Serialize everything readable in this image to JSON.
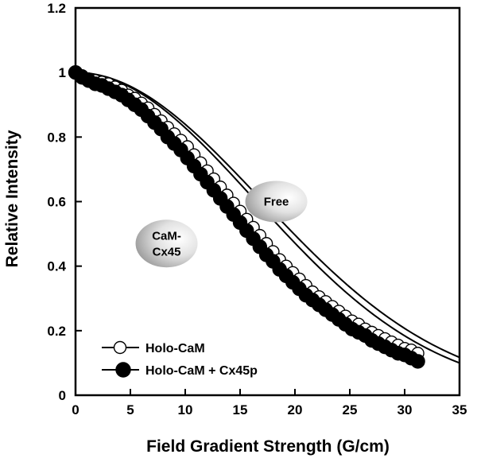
{
  "chart_data": {
    "type": "scatter",
    "xlabel": "Field Gradient Strength (G/cm)",
    "ylabel": "Relative Intensity",
    "xlim": [
      0,
      35
    ],
    "ylim": [
      0,
      1.2
    ],
    "xticks": [
      "0",
      "5",
      "10",
      "15",
      "20",
      "25",
      "30",
      "35"
    ],
    "yticks": [
      "0",
      "0.2",
      "0.4",
      "0.6",
      "0.8",
      "1",
      "1.2"
    ],
    "grid": false,
    "legend_position": "bottom-left",
    "annotations": [
      {
        "text": "Free",
        "x": 18.3,
        "y": 0.6
      },
      {
        "text": "CaM-\nCx45",
        "x": 8.3,
        "y": 0.47
      }
    ],
    "series": [
      {
        "name": "Holo-CaM",
        "marker": "open-circle",
        "fit": {
          "a": 0.00175,
          "from": 0,
          "to": 35
        },
        "points": [
          [
            0.0,
            1.0
          ],
          [
            0.6,
            0.99
          ],
          [
            1.2,
            0.98
          ],
          [
            1.8,
            0.975
          ],
          [
            2.4,
            0.97
          ],
          [
            3.0,
            0.965
          ],
          [
            3.6,
            0.955
          ],
          [
            4.2,
            0.945
          ],
          [
            4.8,
            0.93
          ],
          [
            5.4,
            0.92
          ],
          [
            6.0,
            0.905
          ],
          [
            6.6,
            0.89
          ],
          [
            7.2,
            0.87
          ],
          [
            7.8,
            0.85
          ],
          [
            8.4,
            0.83
          ],
          [
            9.0,
            0.81
          ],
          [
            9.6,
            0.79
          ],
          [
            10.2,
            0.77
          ],
          [
            10.8,
            0.745
          ],
          [
            11.4,
            0.72
          ],
          [
            12.0,
            0.695
          ],
          [
            12.6,
            0.67
          ],
          [
            13.2,
            0.645
          ],
          [
            13.8,
            0.62
          ],
          [
            14.4,
            0.595
          ],
          [
            15.0,
            0.57
          ],
          [
            15.6,
            0.545
          ],
          [
            16.2,
            0.52
          ],
          [
            16.8,
            0.495
          ],
          [
            17.4,
            0.47
          ],
          [
            18.0,
            0.445
          ],
          [
            18.6,
            0.42
          ],
          [
            19.2,
            0.4
          ],
          [
            19.8,
            0.38
          ],
          [
            20.4,
            0.36
          ],
          [
            21.0,
            0.34
          ],
          [
            21.6,
            0.32
          ],
          [
            22.2,
            0.305
          ],
          [
            22.8,
            0.29
          ],
          [
            23.4,
            0.275
          ],
          [
            24.0,
            0.26
          ],
          [
            24.6,
            0.245
          ],
          [
            25.2,
            0.23
          ],
          [
            25.8,
            0.22
          ],
          [
            26.4,
            0.205
          ],
          [
            27.0,
            0.195
          ],
          [
            27.6,
            0.185
          ],
          [
            28.2,
            0.175
          ],
          [
            28.8,
            0.165
          ],
          [
            29.4,
            0.155
          ],
          [
            30.0,
            0.145
          ],
          [
            30.6,
            0.14
          ],
          [
            31.2,
            0.13
          ]
        ]
      },
      {
        "name": "Holo-CaM + Cx45p",
        "marker": "filled-circle",
        "fit": {
          "a": 0.00188,
          "from": 0,
          "to": 35
        },
        "points": [
          [
            0.0,
            1.0
          ],
          [
            0.6,
            0.985
          ],
          [
            1.2,
            0.975
          ],
          [
            1.8,
            0.965
          ],
          [
            2.4,
            0.96
          ],
          [
            3.0,
            0.95
          ],
          [
            3.6,
            0.94
          ],
          [
            4.2,
            0.93
          ],
          [
            4.8,
            0.915
          ],
          [
            5.4,
            0.9
          ],
          [
            6.0,
            0.885
          ],
          [
            6.6,
            0.865
          ],
          [
            7.2,
            0.845
          ],
          [
            7.8,
            0.825
          ],
          [
            8.4,
            0.8
          ],
          [
            9.0,
            0.78
          ],
          [
            9.6,
            0.76
          ],
          [
            10.2,
            0.735
          ],
          [
            10.8,
            0.71
          ],
          [
            11.4,
            0.685
          ],
          [
            12.0,
            0.66
          ],
          [
            12.6,
            0.635
          ],
          [
            13.2,
            0.61
          ],
          [
            13.8,
            0.585
          ],
          [
            14.4,
            0.56
          ],
          [
            15.0,
            0.535
          ],
          [
            15.6,
            0.51
          ],
          [
            16.2,
            0.485
          ],
          [
            16.8,
            0.46
          ],
          [
            17.4,
            0.435
          ],
          [
            18.0,
            0.415
          ],
          [
            18.6,
            0.39
          ],
          [
            19.2,
            0.37
          ],
          [
            19.8,
            0.35
          ],
          [
            20.4,
            0.33
          ],
          [
            21.0,
            0.31
          ],
          [
            21.6,
            0.295
          ],
          [
            22.2,
            0.28
          ],
          [
            22.8,
            0.265
          ],
          [
            23.4,
            0.25
          ],
          [
            24.0,
            0.235
          ],
          [
            24.6,
            0.22
          ],
          [
            25.2,
            0.205
          ],
          [
            25.8,
            0.195
          ],
          [
            26.4,
            0.185
          ],
          [
            27.0,
            0.17
          ],
          [
            27.6,
            0.16
          ],
          [
            28.2,
            0.15
          ],
          [
            28.8,
            0.14
          ],
          [
            29.4,
            0.13
          ],
          [
            30.0,
            0.125
          ],
          [
            30.6,
            0.115
          ],
          [
            31.2,
            0.105
          ]
        ]
      }
    ]
  }
}
